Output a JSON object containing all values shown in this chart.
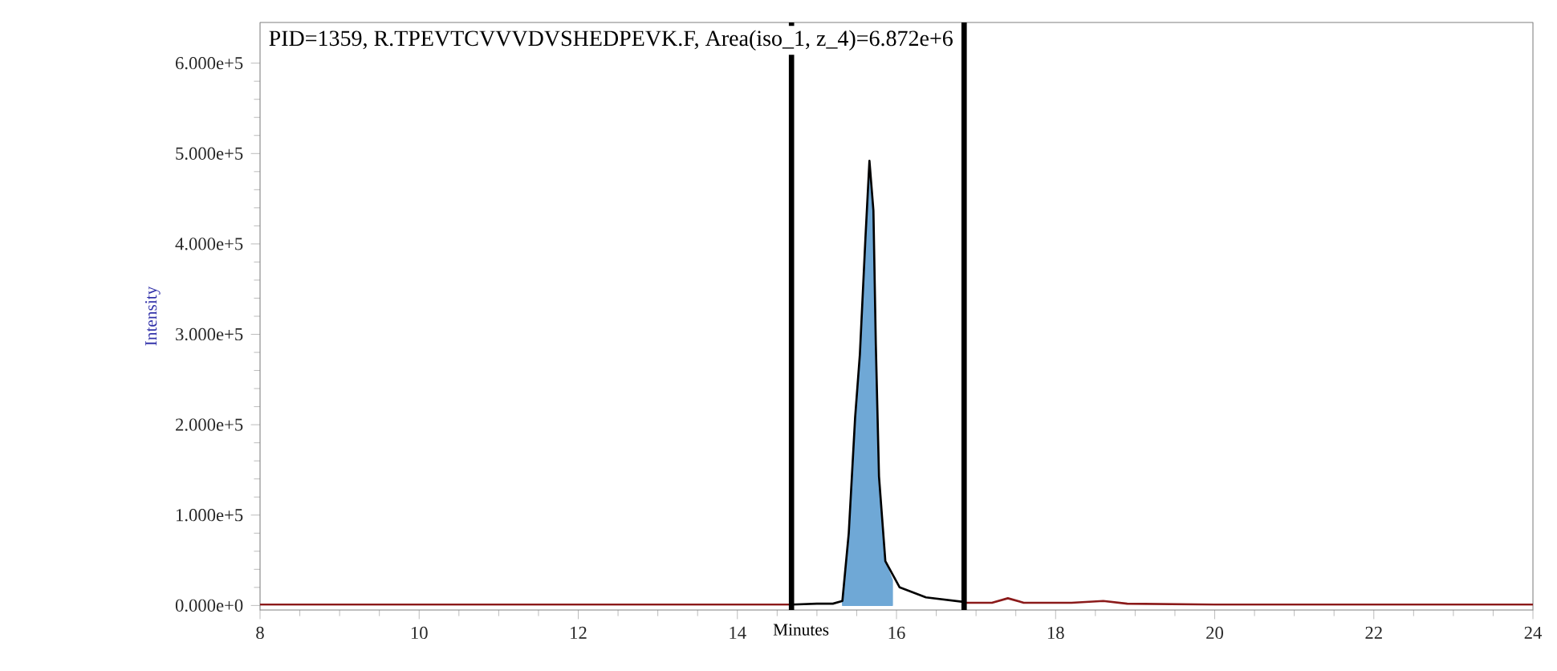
{
  "chart_data": {
    "type": "line",
    "title": "PID=1359, R.TPEVTCVVVDVSHEDPEVK.F, Area(iso_1, z_4)=6.872e+6",
    "xlabel": "Minutes",
    "ylabel": "Intensity",
    "xlim": [
      8,
      24
    ],
    "ylim": [
      -5000,
      645000
    ],
    "xticks": [
      8,
      10,
      12,
      14,
      16,
      18,
      20,
      22,
      24
    ],
    "yticks": [
      {
        "value": 0,
        "label": "0.000e+0"
      },
      {
        "value": 100000,
        "label": "1.000e+5"
      },
      {
        "value": 200000,
        "label": "2.000e+5"
      },
      {
        "value": 300000,
        "label": "3.000e+5"
      },
      {
        "value": 400000,
        "label": "4.000e+5"
      },
      {
        "value": 500000,
        "label": "5.000e+5"
      },
      {
        "value": 600000,
        "label": "6.000e+5"
      }
    ],
    "marker": "none",
    "line_style": "solid",
    "ref_lines": [
      {
        "axis": "x",
        "value": 14.68,
        "color": "#000000"
      },
      {
        "axis": "x",
        "value": 16.85,
        "color": "#000000"
      }
    ],
    "series": [
      {
        "type": "area",
        "color": "#6fa8d6",
        "x": [
          15.32,
          15.4,
          15.48,
          15.54,
          15.61,
          15.66,
          15.71,
          15.74,
          15.78,
          15.86,
          15.95
        ],
        "values": [
          5000,
          80000,
          208000,
          278000,
          407000,
          492000,
          437000,
          290000,
          143000,
          49000,
          28000
        ]
      },
      {
        "color": "#8b1a1a",
        "x": [
          8,
          10,
          12,
          14,
          14.68,
          15.5,
          16.85,
          17.2,
          17.4,
          17.6,
          18.2,
          18.6,
          18.9,
          20,
          22,
          24
        ],
        "values": [
          1000,
          1000,
          1000,
          1000,
          1000,
          null,
          3000,
          3000,
          8000,
          3000,
          3000,
          5000,
          2000,
          1000,
          1000,
          1000
        ]
      },
      {
        "color": "#000000",
        "x": [
          14.68,
          15.0,
          15.2,
          15.32,
          15.4,
          15.48,
          15.54,
          15.61,
          15.66,
          15.71,
          15.74,
          15.78,
          15.86,
          16.04,
          16.37,
          16.84
        ],
        "values": [
          1000,
          2000,
          2000,
          5000,
          80000,
          208000,
          278000,
          407000,
          492000,
          437000,
          290000,
          143000,
          49000,
          20000,
          9000,
          4000
        ]
      }
    ]
  }
}
